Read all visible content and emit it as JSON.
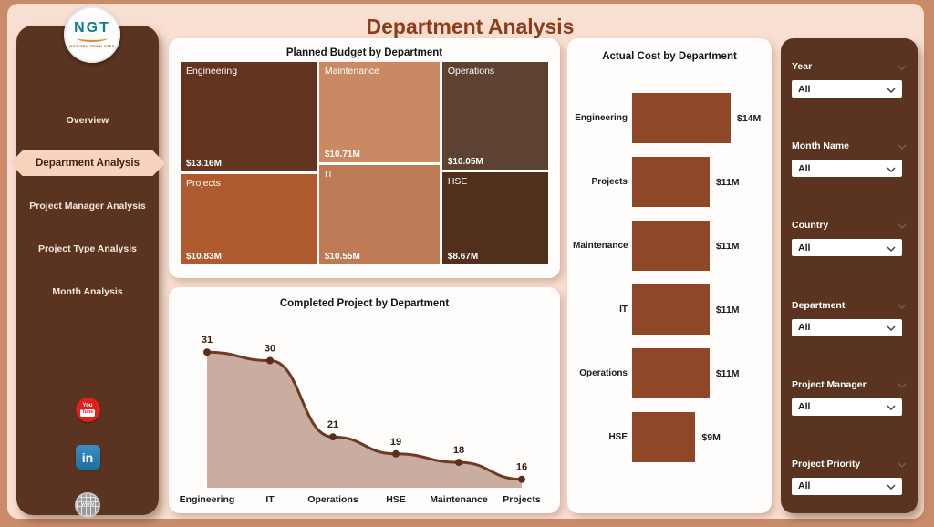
{
  "page": {
    "title": "Department Analysis"
  },
  "sidebar": {
    "logo": {
      "text": "NGT",
      "subtext": "NGT DEV TEMPLATES"
    },
    "items": [
      {
        "label": "Overview",
        "active": false
      },
      {
        "label": "Department Analysis",
        "active": true
      },
      {
        "label": "Project Manager Analysis",
        "active": false
      },
      {
        "label": "Project Type Analysis",
        "active": false
      },
      {
        "label": "Month Analysis",
        "active": false
      }
    ],
    "social": {
      "youtube_line1": "You",
      "youtube_line2": "Tube",
      "linkedin": "in",
      "website": "www"
    }
  },
  "chart_data": [
    {
      "type": "treemap",
      "title": "Planned Budget by Department",
      "columns": [
        [
          0,
          1
        ],
        [
          2,
          3
        ],
        [
          4,
          5
        ]
      ],
      "series": [
        {
          "label": "Engineering",
          "value": 13.16,
          "value_label": "$13.16M",
          "color": "#63341f"
        },
        {
          "label": "Projects",
          "value": 10.83,
          "value_label": "$10.83M",
          "color": "#b05a2f"
        },
        {
          "label": "Maintenance",
          "value": 10.71,
          "value_label": "$10.71M",
          "color": "#c98a63"
        },
        {
          "label": "IT",
          "value": 10.55,
          "value_label": "$10.55M",
          "color": "#bd7a55"
        },
        {
          "label": "Operations",
          "value": 10.05,
          "value_label": "$10.05M",
          "color": "#5d4231"
        },
        {
          "label": "HSE",
          "value": 8.67,
          "value_label": "$8.67M",
          "color": "#522f1c"
        }
      ]
    },
    {
      "type": "area",
      "title": "Completed Project by Department",
      "categories": [
        "Engineering",
        "IT",
        "Operations",
        "HSE",
        "Maintenance",
        "Projects"
      ],
      "values": [
        31,
        30,
        21,
        19,
        18,
        16
      ],
      "line_color": "#6e3a22",
      "fill_color": "#c9ada1",
      "marker_color": "#5c2d18",
      "label_color": "#33200f"
    },
    {
      "type": "bar",
      "title": "Actual Cost by Department",
      "categories": [
        "Engineering",
        "Projects",
        "Maintenance",
        "IT",
        "Operations",
        "HSE"
      ],
      "values": [
        14,
        11,
        11,
        11,
        11,
        9
      ],
      "value_labels": [
        "$14M",
        "$11M",
        "$11M",
        "$11M",
        "$11M",
        "$9M"
      ],
      "bar_color": "#8f4827",
      "xlim": [
        0,
        14
      ]
    }
  ],
  "filters": {
    "groups": [
      {
        "label": "Year",
        "value": "All"
      },
      {
        "label": "Month Name",
        "value": "All"
      },
      {
        "label": "Country",
        "value": "All"
      },
      {
        "label": "Department",
        "value": "All"
      },
      {
        "label": "Project Manager",
        "value": "All"
      },
      {
        "label": "Project Priority",
        "value": "All"
      }
    ]
  }
}
